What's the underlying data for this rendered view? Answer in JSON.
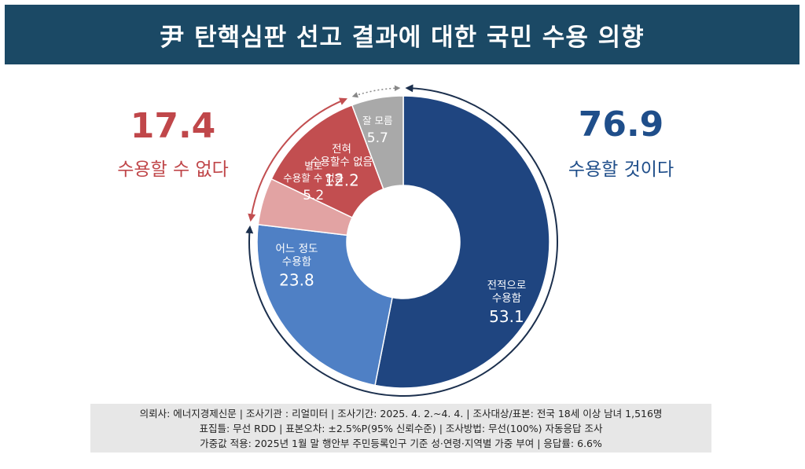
{
  "header": {
    "title": "尹 탄핵심판 선고 결과에 대한 국민 수용 의향"
  },
  "summary": {
    "left": {
      "value": "17.4",
      "label": "수용할 수 없다"
    },
    "right": {
      "value": "76.9",
      "label": "수용할 것이다"
    }
  },
  "colors": {
    "header_bg": "#1b4965",
    "accept_strong": "#1f4580",
    "accept_some": "#4f80c5",
    "reject_some": "#e2a3a3",
    "reject_strong": "#c24e50",
    "unknown": "#a9a9a9",
    "reject_text": "#c0474a",
    "accept_text": "#1f4e8a"
  },
  "chart_data": {
    "type": "pie",
    "variant": "donut",
    "start": "top",
    "direction": "clockwise",
    "slices": [
      {
        "label_lines": [
          "전적으로",
          "수용함"
        ],
        "value": 53.1,
        "color": "#1f4580"
      },
      {
        "label_lines": [
          "어느 정도",
          "수용함"
        ],
        "value": 23.8,
        "color": "#4f80c5"
      },
      {
        "label_lines": [
          "별로",
          "수용할 수 없음"
        ],
        "value": 5.2,
        "color": "#e2a3a3"
      },
      {
        "label_lines": [
          "전혀",
          "수용할수 없음"
        ],
        "value": 12.2,
        "color": "#c24e50"
      },
      {
        "label_lines": [
          "잘 모름"
        ],
        "value": 5.7,
        "color": "#a9a9a9"
      }
    ]
  },
  "footer": {
    "lines": [
      "의뢰사: 에너지경제신문 | 조사기관 : 리얼미터  |  조사기간: 2025. 4. 2.~4. 4. | 조사대상/표본: 전국 18세 이상 남녀 1,516명",
      "표집틀: 무선 RDD | 표본오차: ±2.5%P(95% 신뢰수준) | 조사방법: 무선(100%) 자동응답 조사",
      "가중값 적용: 2025년 1월 말 행안부 주민등록인구 기준 성·연령·지역별 가중 부여 | 응답률: 6.6%"
    ]
  }
}
